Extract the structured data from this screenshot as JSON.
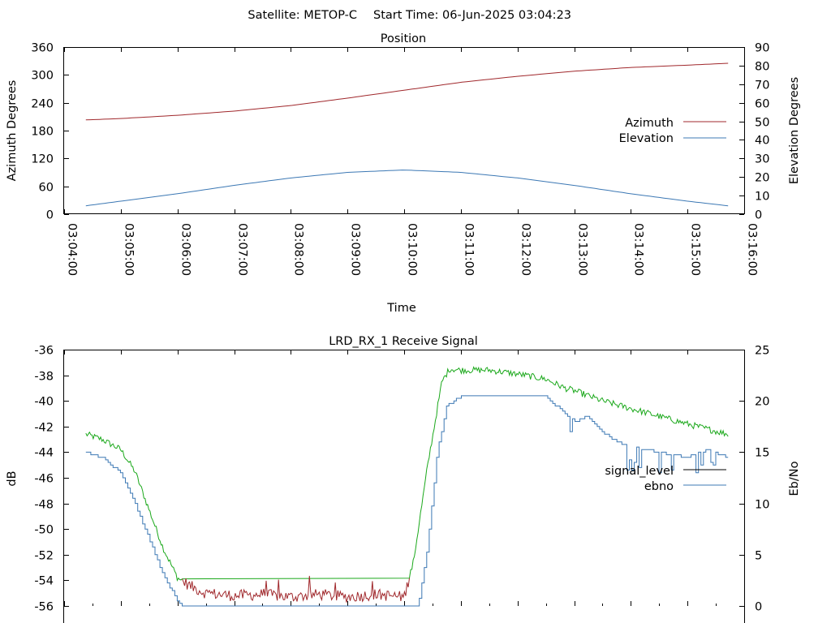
{
  "header": {
    "satellite": "Satellite: METOP-C",
    "start_time": "Start Time: 06-Jun-2025 03:04:23"
  },
  "chart_data": [
    {
      "type": "line",
      "title": "Position",
      "xlabel": "Time",
      "ylabel": "Azimuth Degrees",
      "y2label": "Elevation Degrees",
      "xlim": [
        "03:04:00",
        "03:16:00"
      ],
      "x_ticks": [
        "03:04:00",
        "03:05:00",
        "03:06:00",
        "03:07:00",
        "03:08:00",
        "03:09:00",
        "03:10:00",
        "03:11:00",
        "03:12:00",
        "03:13:00",
        "03:14:00",
        "03:15:00",
        "03:16:00"
      ],
      "ylim": [
        0,
        360
      ],
      "y_ticks": [
        "0",
        "60",
        "120",
        "180",
        "240",
        "300",
        "360"
      ],
      "y2lim": [
        0,
        90
      ],
      "y2_ticks": [
        "0",
        "10",
        "20",
        "30",
        "40",
        "50",
        "60",
        "70",
        "80",
        "90"
      ],
      "legend_position": "right",
      "series": [
        {
          "name": "Azimuth",
          "axis": "y",
          "color": "#a0282c",
          "x": [
            "03:04:23",
            "03:05:00",
            "03:06:00",
            "03:07:00",
            "03:08:00",
            "03:09:00",
            "03:10:00",
            "03:11:00",
            "03:12:00",
            "03:13:00",
            "03:14:00",
            "03:15:00",
            "03:15:43"
          ],
          "values": [
            203,
            206,
            213,
            222,
            234,
            250,
            267,
            284,
            297,
            308,
            316,
            321,
            325
          ]
        },
        {
          "name": "Elevation",
          "axis": "y2",
          "color": "#3c78b4",
          "x": [
            "03:04:23",
            "03:05:00",
            "03:06:00",
            "03:07:00",
            "03:08:00",
            "03:09:00",
            "03:10:00",
            "03:11:00",
            "03:12:00",
            "03:13:00",
            "03:14:00",
            "03:15:00",
            "03:15:43"
          ],
          "values": [
            4.5,
            7,
            11,
            15.5,
            19.5,
            22.5,
            23.8,
            22.5,
            19.5,
            15.5,
            11,
            7,
            4.5
          ]
        }
      ]
    },
    {
      "type": "line",
      "title": "LRD_RX_1 Receive Signal",
      "ylabel": "dB",
      "y2label": "Eb/No",
      "xlim": [
        "03:04:00",
        "03:16:00"
      ],
      "ylim": [
        -56,
        -36
      ],
      "y_ticks": [
        "-56",
        "-54",
        "-52",
        "-50",
        "-48",
        "-46",
        "-44",
        "-42",
        "-40",
        "-38",
        "-36"
      ],
      "y2lim": [
        0,
        25
      ],
      "y2_ticks": [
        "0",
        "5",
        "10",
        "15",
        "20",
        "25"
      ],
      "legend_position": "right",
      "series": [
        {
          "name": "signal_level",
          "axis": "y",
          "legend_color": "#000000",
          "colors": {
            "above_-54": "#1aa81a",
            "below_-54": "#a0282c"
          },
          "x": [
            "03:04:23",
            "03:04:40",
            "03:05:00",
            "03:05:15",
            "03:05:30",
            "03:05:45",
            "03:06:00",
            "03:06:15",
            "03:06:30",
            "03:07:00",
            "03:07:30",
            "03:08:00",
            "03:08:30",
            "03:09:00",
            "03:09:30",
            "03:10:00",
            "03:10:10",
            "03:10:25",
            "03:10:40",
            "03:10:48",
            "03:11:00",
            "03:11:30",
            "03:12:00",
            "03:12:30",
            "03:12:50",
            "03:13:00",
            "03:13:30",
            "03:14:00",
            "03:14:30",
            "03:15:00",
            "03:15:43"
          ],
          "values": [
            -42.6,
            -43.0,
            -43.8,
            -45.5,
            -48.5,
            -51.5,
            -53.8,
            -54.5,
            -55.0,
            -55.2,
            -55.1,
            -55.3,
            -55.1,
            -55.3,
            -55.1,
            -55.3,
            -52.5,
            -45.0,
            -38.5,
            -37.5,
            -37.6,
            -37.6,
            -37.9,
            -38.3,
            -39.0,
            -39.2,
            -40.0,
            -40.6,
            -41.2,
            -41.8,
            -42.6
          ]
        },
        {
          "name": "ebno",
          "axis": "y2",
          "color": "#3c78b4",
          "x": [
            "03:04:23",
            "03:04:40",
            "03:05:00",
            "03:05:15",
            "03:05:30",
            "03:05:45",
            "03:06:00",
            "03:06:05",
            "03:10:15",
            "03:10:25",
            "03:10:35",
            "03:10:45",
            "03:11:00",
            "03:11:30",
            "03:12:00",
            "03:12:30",
            "03:13:00",
            "03:13:15",
            "03:13:30",
            "03:13:45",
            "03:14:00",
            "03:14:30",
            "03:15:00",
            "03:15:20",
            "03:15:43"
          ],
          "values": [
            15.0,
            14.5,
            13.0,
            10.0,
            6.5,
            3.0,
            0.5,
            0.0,
            0.0,
            6.0,
            15.0,
            19.5,
            20.5,
            20.6,
            20.5,
            20.4,
            18.0,
            18.5,
            17.0,
            16.0,
            15.5,
            15.0,
            14.5,
            15.2,
            14.5
          ]
        }
      ]
    }
  ]
}
